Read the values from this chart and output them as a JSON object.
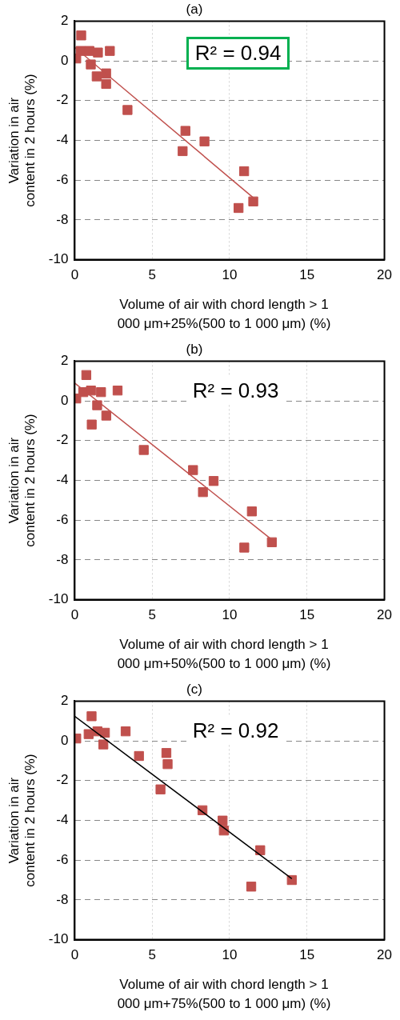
{
  "chart_data": [
    {
      "type": "scatter",
      "title": "(a)",
      "xlabel": "Volume of air with chord length > 1 000 μm+25%(500 to 1 000 μm) (%)",
      "ylabel": "Variation in air content in 2 hours (%)",
      "xlim": [
        0,
        20
      ],
      "xticks": [
        0,
        5,
        10,
        15,
        20
      ],
      "ylim": [
        -10,
        2
      ],
      "yticks": [
        -10,
        -8,
        -6,
        -4,
        -2,
        0,
        2
      ],
      "grid": true,
      "series": [
        {
          "marker": "square",
          "color": "#c0504d",
          "x": [
            0.42,
            0.1,
            0.38,
            0.95,
            1.5,
            2.27,
            1.04,
            1.42,
            2.03,
            2.03,
            3.41,
            7.15,
            8.38,
            6.97,
            10.94,
            11.53,
            10.58
          ],
          "values": [
            1.28,
            0.12,
            0.5,
            0.5,
            0.42,
            0.5,
            -0.18,
            -0.78,
            -0.63,
            -1.16,
            -2.47,
            -3.52,
            -4.05,
            -4.54,
            -5.55,
            -7.07,
            -7.4
          ]
        },
        {
          "type": "line",
          "color": "#c0504d",
          "x": [
            0,
            11.53
          ],
          "values": [
            0.68,
            -6.88
          ]
        }
      ],
      "annotations": [
        "R² = 0.94"
      ]
    },
    {
      "type": "scatter",
      "title": "(b)",
      "xlabel": "Volume of air with chord length > 1 000 μm+50%(500 to 1 000 μm) (%)",
      "ylabel": "Variation in air content in 2 hours (%)",
      "xlim": [
        0,
        20
      ],
      "xticks": [
        0,
        5,
        10,
        15,
        20
      ],
      "ylim": [
        -10,
        2
      ],
      "yticks": [
        -10,
        -8,
        -6,
        -4,
        -2,
        0,
        2
      ],
      "grid": true,
      "series": [
        {
          "marker": "square",
          "color": "#c0504d",
          "x": [
            0.75,
            0.1,
            0.55,
            1.05,
            1.7,
            2.77,
            1.45,
            2.04,
            1.1,
            4.46,
            7.64,
            8.97,
            8.28,
            11.44,
            12.73,
            10.95
          ],
          "values": [
            1.3,
            0.12,
            0.44,
            0.52,
            0.44,
            0.52,
            -0.22,
            -0.74,
            -1.19,
            -2.47,
            -3.48,
            -4.03,
            -4.59,
            -5.56,
            -7.11,
            -7.38
          ]
        },
        {
          "type": "line",
          "color": "#c0504d",
          "x": [
            0,
            12.73
          ],
          "values": [
            0.9,
            -6.98
          ]
        }
      ],
      "annotations": [
        "R² = 0.93"
      ]
    },
    {
      "type": "scatter",
      "title": "(c)",
      "xlabel": "Volume of air with chord length > 1 000 μm+75%(500 to 1 000 μm) (%)",
      "ylabel": "Variation in air content in 2 hours (%)",
      "xlim": [
        0,
        20
      ],
      "xticks": [
        0,
        5,
        10,
        15,
        20
      ],
      "ylim": [
        -10,
        2
      ],
      "yticks": [
        -10,
        -8,
        -6,
        -4,
        -2,
        0,
        2
      ],
      "grid": true,
      "series": [
        {
          "marker": "square",
          "color": "#c0504d",
          "x": [
            1.09,
            0.1,
            0.9,
            1.47,
            1.95,
            3.29,
            1.85,
            4.15,
            5.92,
            6.0,
            5.54,
            8.25,
            9.55,
            9.63,
            11.98,
            14.02,
            11.4
          ],
          "values": [
            1.24,
            0.12,
            0.34,
            0.48,
            0.41,
            0.48,
            -0.18,
            -0.76,
            -0.61,
            -1.17,
            -2.44,
            -3.49,
            -4.01,
            -4.51,
            -5.5,
            -7.0,
            -7.33
          ]
        },
        {
          "type": "line",
          "color": "#000000",
          "x": [
            0,
            14.02
          ],
          "values": [
            1.24,
            -6.93
          ]
        }
      ],
      "annotations": [
        "R² = 0.92"
      ]
    }
  ]
}
